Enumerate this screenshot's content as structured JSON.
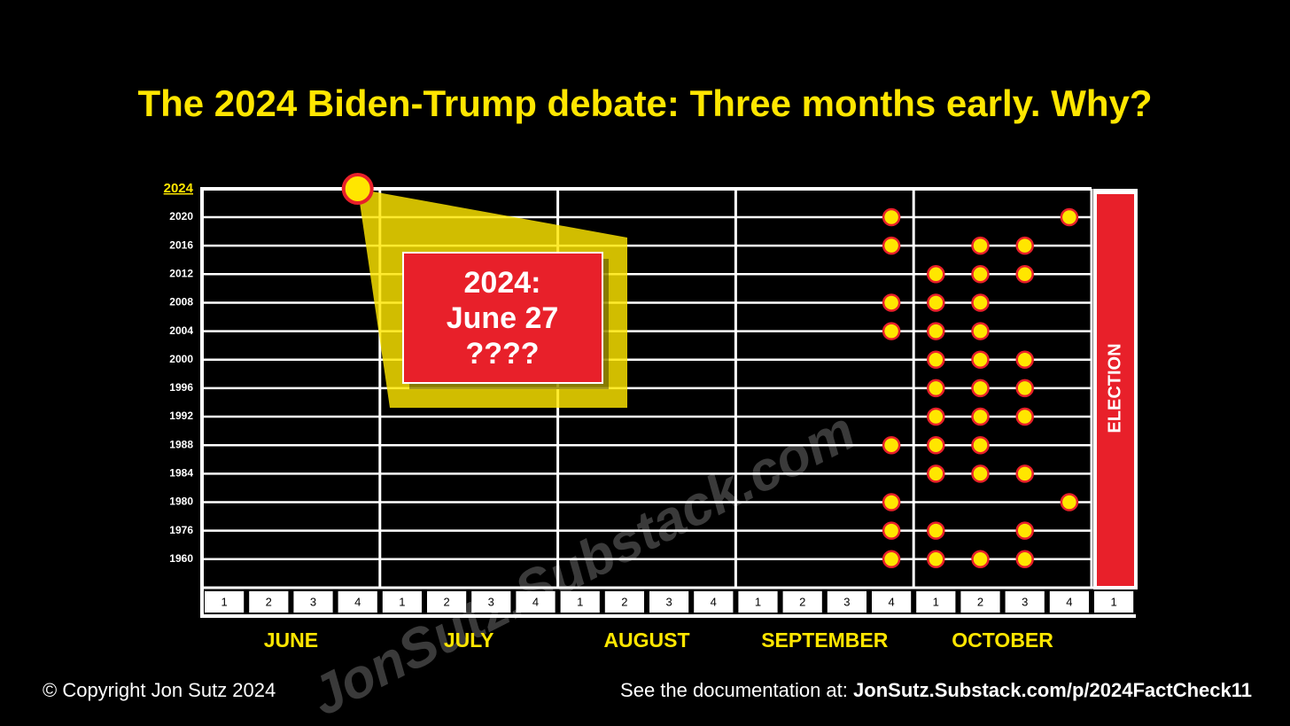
{
  "title": "The 2024 Biden-Trump debate: Three months early. Why?",
  "chart_data": {
    "type": "timeline",
    "months": [
      "JUNE",
      "JULY",
      "AUGUST",
      "SEPTEMBER",
      "OCTOBER"
    ],
    "week_labels": [
      [
        1,
        2,
        3,
        4
      ],
      [
        1,
        2,
        3,
        4
      ],
      [
        1,
        2,
        3,
        4
      ],
      [
        1,
        2,
        3,
        4
      ],
      [
        1,
        2,
        3,
        4
      ],
      [
        1
      ]
    ],
    "dot_color": "#ffe600",
    "dot_border": "#e8202a",
    "rows": [
      {
        "year": "2024",
        "debates": [
          {
            "month": 0,
            "week": 4
          }
        ]
      },
      {
        "year": "2020",
        "debates": [
          {
            "month": 3,
            "week": 4
          },
          {
            "month": 4,
            "week": 4
          }
        ]
      },
      {
        "year": "2016",
        "debates": [
          {
            "month": 3,
            "week": 4
          },
          {
            "month": 4,
            "week": 2
          },
          {
            "month": 4,
            "week": 3
          }
        ]
      },
      {
        "year": "2012",
        "debates": [
          {
            "month": 4,
            "week": 1
          },
          {
            "month": 4,
            "week": 2
          },
          {
            "month": 4,
            "week": 3
          }
        ]
      },
      {
        "year": "2008",
        "debates": [
          {
            "month": 3,
            "week": 4
          },
          {
            "month": 4,
            "week": 1
          },
          {
            "month": 4,
            "week": 2
          }
        ]
      },
      {
        "year": "2004",
        "debates": [
          {
            "month": 3,
            "week": 4
          },
          {
            "month": 4,
            "week": 1
          },
          {
            "month": 4,
            "week": 2
          }
        ]
      },
      {
        "year": "2000",
        "debates": [
          {
            "month": 4,
            "week": 1
          },
          {
            "month": 4,
            "week": 2
          },
          {
            "month": 4,
            "week": 3
          }
        ]
      },
      {
        "year": "1996",
        "debates": [
          {
            "month": 4,
            "week": 1
          },
          {
            "month": 4,
            "week": 2
          },
          {
            "month": 4,
            "week": 3
          }
        ]
      },
      {
        "year": "1992",
        "debates": [
          {
            "month": 4,
            "week": 1
          },
          {
            "month": 4,
            "week": 2
          },
          {
            "month": 4,
            "week": 3
          }
        ]
      },
      {
        "year": "1988",
        "debates": [
          {
            "month": 3,
            "week": 4
          },
          {
            "month": 4,
            "week": 1
          },
          {
            "month": 4,
            "week": 2
          }
        ]
      },
      {
        "year": "1984",
        "debates": [
          {
            "month": 4,
            "week": 1
          },
          {
            "month": 4,
            "week": 2
          },
          {
            "month": 4,
            "week": 3
          }
        ]
      },
      {
        "year": "1980",
        "debates": [
          {
            "month": 3,
            "week": 4
          },
          {
            "month": 4,
            "week": 4
          }
        ]
      },
      {
        "year": "1976",
        "debates": [
          {
            "month": 3,
            "week": 4
          },
          {
            "month": 4,
            "week": 1
          },
          {
            "month": 4,
            "week": 3
          }
        ]
      },
      {
        "year": "1960",
        "debates": [
          {
            "month": 3,
            "week": 4
          },
          {
            "month": 4,
            "week": 1
          },
          {
            "month": 4,
            "week": 2
          },
          {
            "month": 4,
            "week": 3
          }
        ]
      }
    ],
    "callout": [
      "2024:",
      "June 27",
      "????"
    ],
    "election_label": "ELECTION"
  },
  "watermark": "JonSutz.Substack.com",
  "copyright": "© Copyright Jon Sutz 2024",
  "source_prefix": "See the documentation at:",
  "source_url": "JonSutz.Substack.com/p/2024FactCheck11"
}
